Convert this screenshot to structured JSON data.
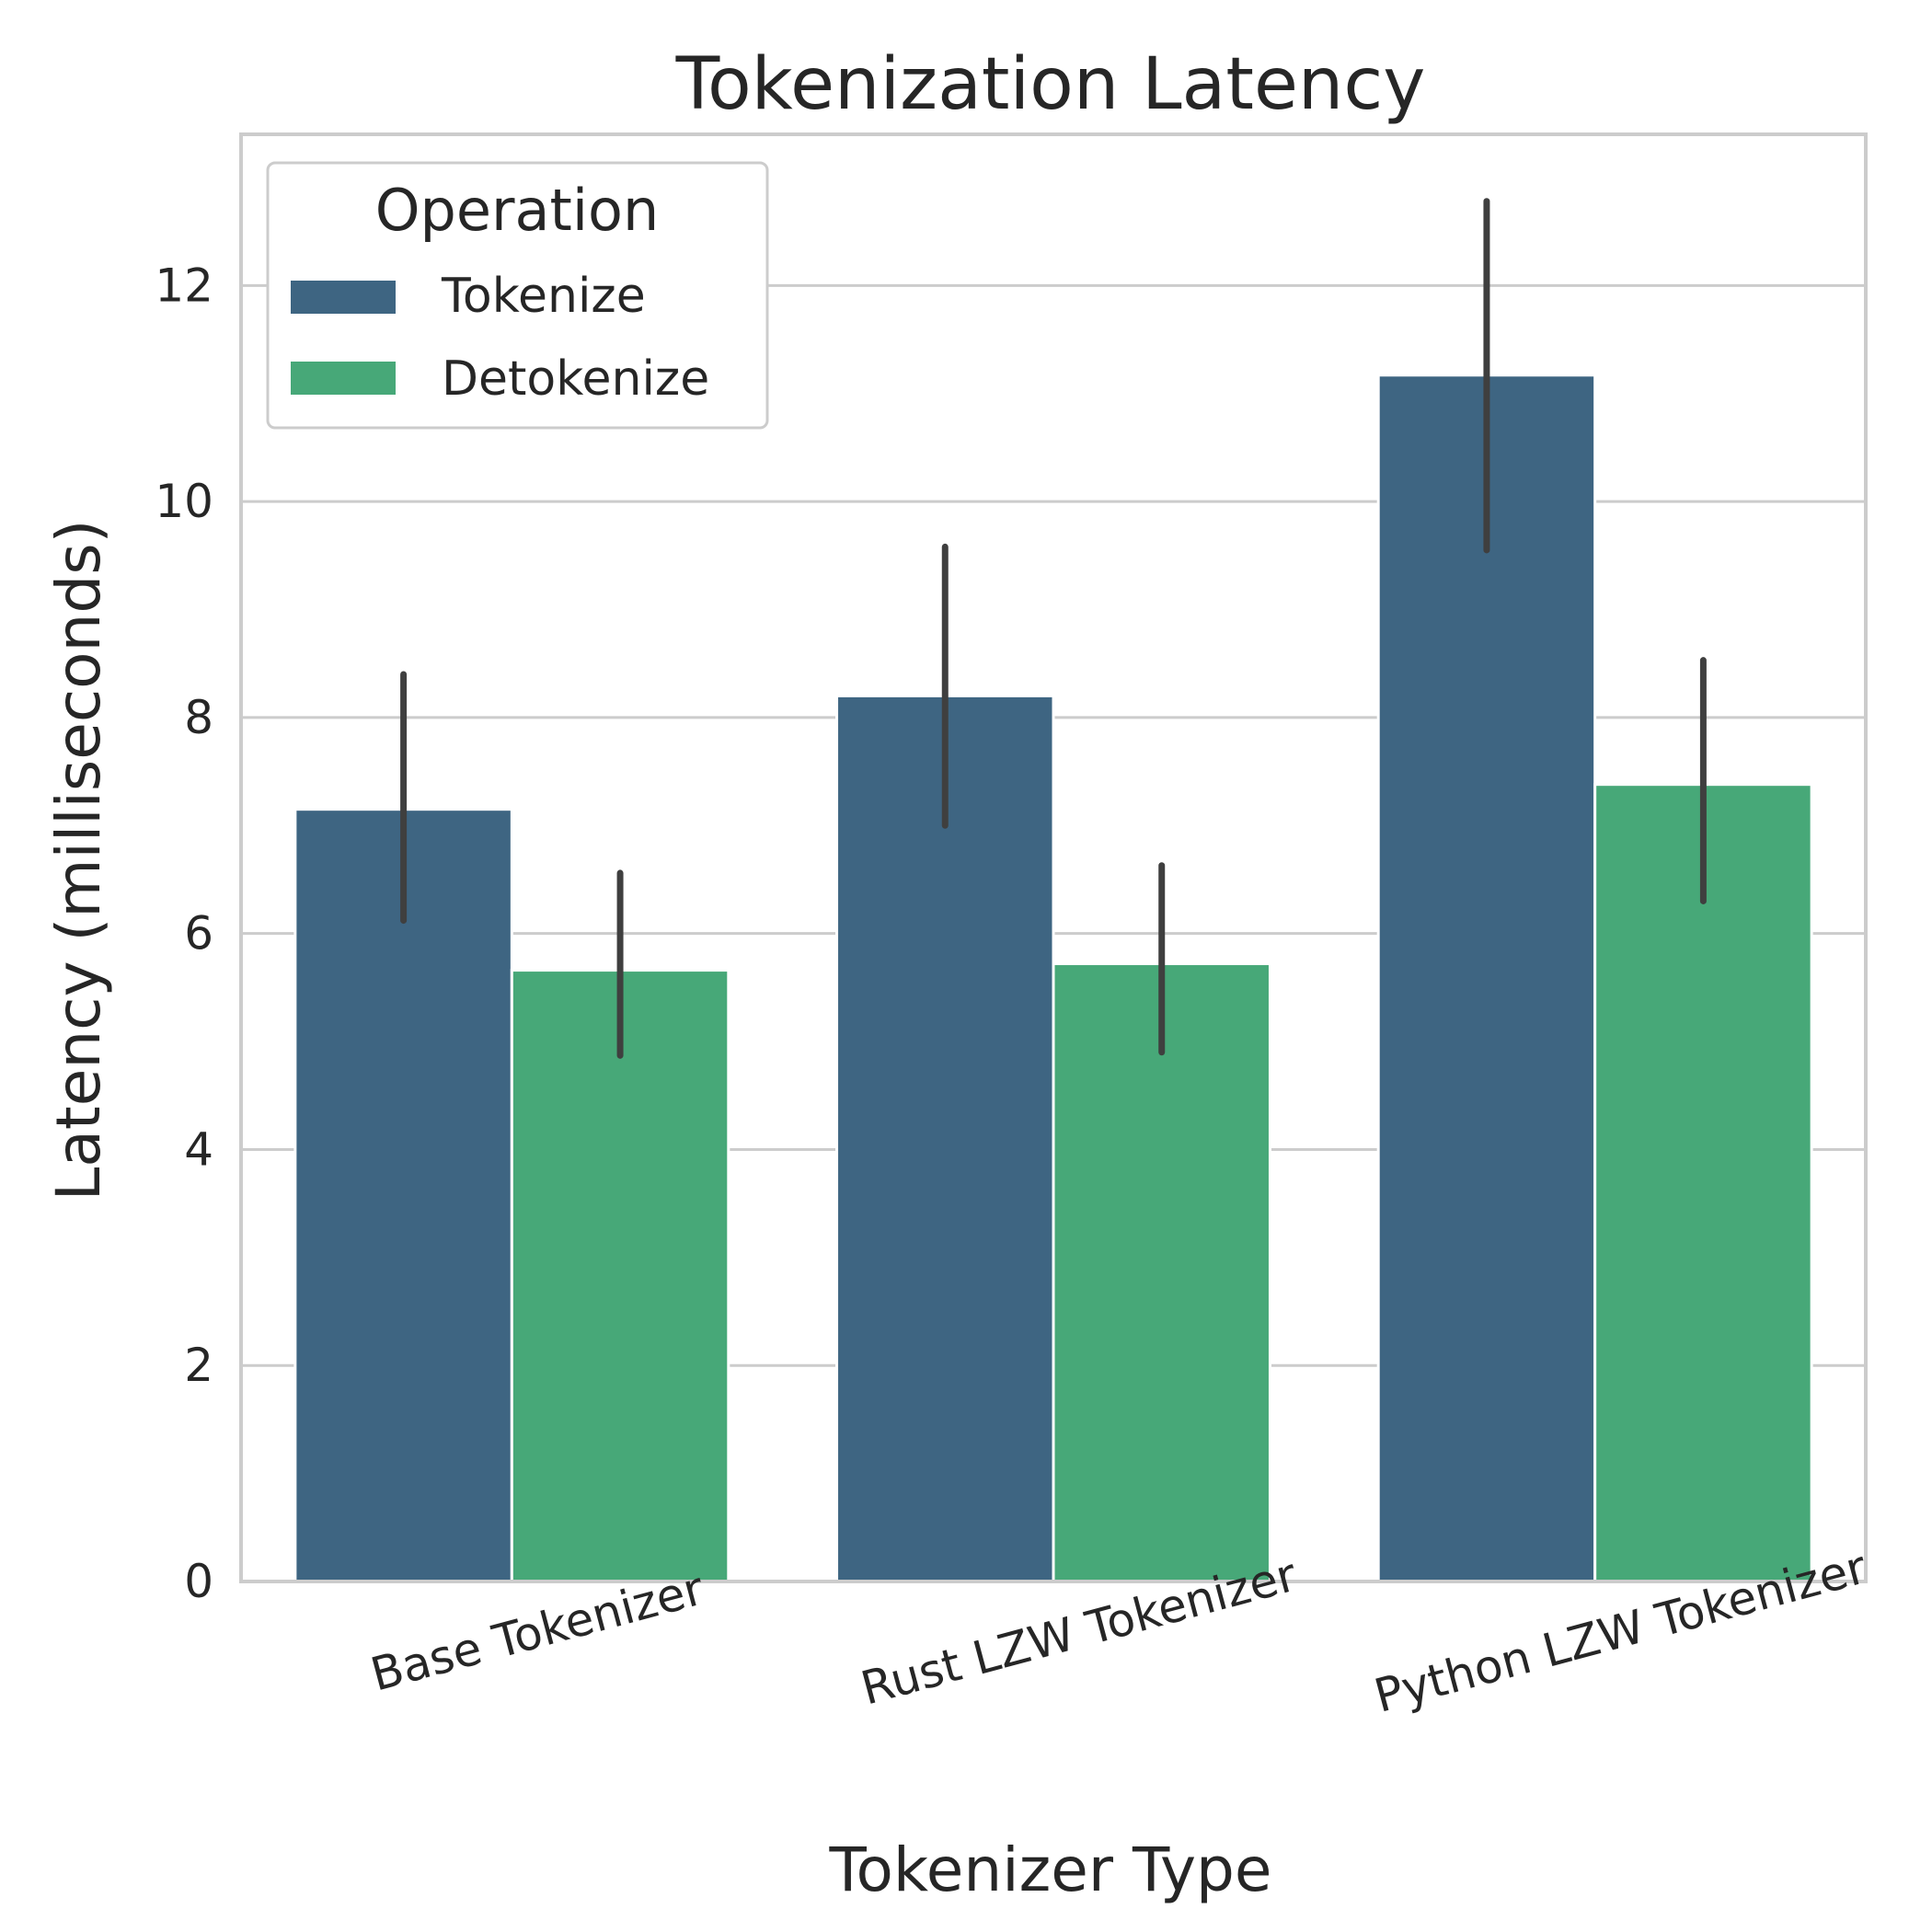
{
  "chart_data": {
    "type": "bar",
    "title": "Tokenization Latency",
    "xlabel": "Tokenizer Type",
    "ylabel": "Latency (milliseconds)",
    "categories": [
      "Base Tokenizer",
      "Rust LZW Tokenizer",
      "Python LZW Tokenizer"
    ],
    "ylim": [
      0,
      13.4
    ],
    "yticks": [
      0,
      2,
      4,
      6,
      8,
      10,
      12
    ],
    "grid": true,
    "legend": {
      "title": "Operation",
      "position": "top-left"
    },
    "series": [
      {
        "name": "Tokenize",
        "color": "#3e6582",
        "values": [
          7.15,
          8.2,
          11.17
        ],
        "ci_low": [
          6.12,
          7.0,
          9.55
        ],
        "ci_high": [
          8.4,
          9.58,
          12.78
        ]
      },
      {
        "name": "Detokenize",
        "color": "#47a878",
        "values": [
          5.66,
          5.72,
          7.38
        ],
        "ci_low": [
          4.87,
          4.9,
          6.3
        ],
        "ci_high": [
          6.56,
          6.63,
          8.53
        ]
      }
    ]
  }
}
